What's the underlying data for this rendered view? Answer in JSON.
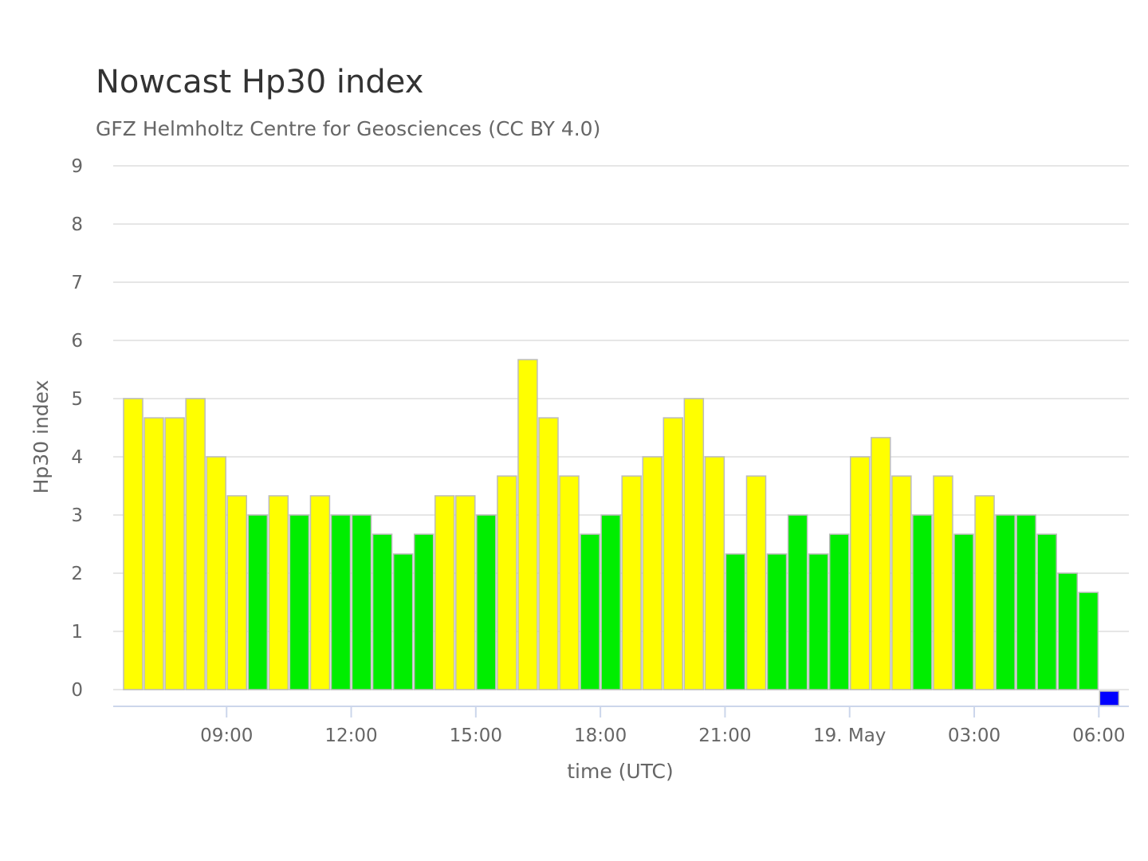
{
  "chart_data": {
    "type": "bar",
    "title": "Nowcast Hp30 index",
    "subtitle": "GFZ Helmholtz Centre for Geosciences (CC BY 4.0)",
    "xlabel": "time (UTC)",
    "ylabel": "Hp30 index",
    "ylim": [
      0,
      9
    ],
    "yticks": [
      "0",
      "1",
      "2",
      "3",
      "4",
      "5",
      "6",
      "7",
      "8",
      "9"
    ],
    "xticks": [
      {
        "time": "09:00",
        "label": "09:00"
      },
      {
        "time": "12:00",
        "label": "12:00"
      },
      {
        "time": "15:00",
        "label": "15:00"
      },
      {
        "time": "18:00",
        "label": "18:00"
      },
      {
        "time": "21:00",
        "label": "21:00"
      },
      {
        "time": "00:00",
        "label": "19. May"
      },
      {
        "time": "03:00",
        "label": "03:00"
      },
      {
        "time": "06:00",
        "label": "06:00"
      }
    ],
    "grid": true,
    "legend": "none",
    "colors": {
      "green": "#00ee00",
      "yellow": "#ffff00",
      "blue": "#0000ff"
    },
    "categories": [
      "06:30",
      "07:00",
      "07:30",
      "08:00",
      "08:30",
      "09:00",
      "09:30",
      "10:00",
      "10:30",
      "11:00",
      "11:30",
      "12:00",
      "12:30",
      "13:00",
      "13:30",
      "14:00",
      "14:30",
      "15:00",
      "15:30",
      "16:00",
      "16:30",
      "17:00",
      "17:30",
      "18:00",
      "18:30",
      "19:00",
      "19:30",
      "20:00",
      "20:30",
      "21:00",
      "21:30",
      "22:00",
      "22:30",
      "23:00",
      "23:30",
      "00:00",
      "00:30",
      "01:00",
      "01:30",
      "02:00",
      "02:30",
      "03:00",
      "03:30",
      "04:00",
      "04:30",
      "05:00",
      "05:30",
      "06:00"
    ],
    "values": [
      5.0,
      4.67,
      4.67,
      5.0,
      4.0,
      3.33,
      3.0,
      3.33,
      3.0,
      3.33,
      3.0,
      3.0,
      2.67,
      2.33,
      2.67,
      3.33,
      3.33,
      3.0,
      3.67,
      5.67,
      4.67,
      3.67,
      2.67,
      3.0,
      3.67,
      4.0,
      4.67,
      5.0,
      4.0,
      2.33,
      3.67,
      2.33,
      3.0,
      2.33,
      2.67,
      4.0,
      4.33,
      3.67,
      3.0,
      3.67,
      2.67,
      3.33,
      3.0,
      3.0,
      2.67,
      2.0,
      1.67,
      0.0
    ],
    "bar_colors": [
      "yellow",
      "yellow",
      "yellow",
      "yellow",
      "yellow",
      "yellow",
      "green",
      "yellow",
      "green",
      "yellow",
      "green",
      "green",
      "green",
      "green",
      "green",
      "yellow",
      "yellow",
      "green",
      "yellow",
      "yellow",
      "yellow",
      "yellow",
      "green",
      "green",
      "yellow",
      "yellow",
      "yellow",
      "yellow",
      "yellow",
      "green",
      "yellow",
      "green",
      "green",
      "green",
      "green",
      "yellow",
      "yellow",
      "yellow",
      "green",
      "yellow",
      "green",
      "yellow",
      "green",
      "green",
      "green",
      "green",
      "green",
      "blue"
    ]
  }
}
